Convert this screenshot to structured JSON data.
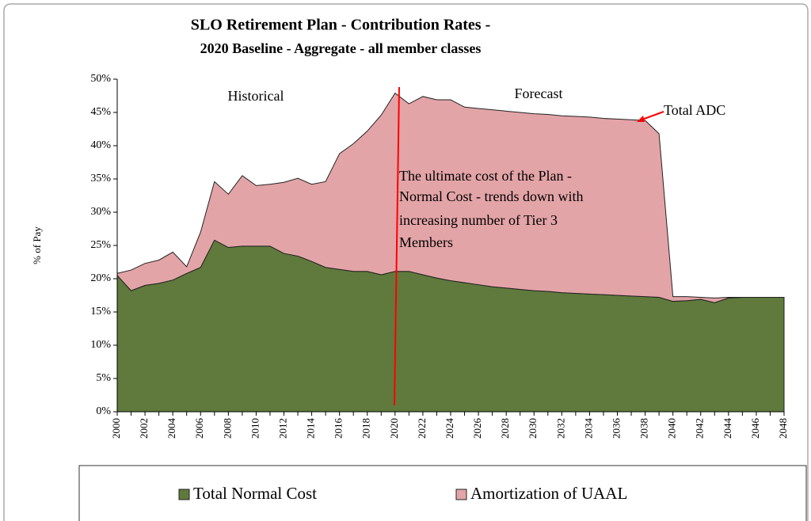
{
  "chart_data": {
    "type": "stacked_area",
    "title": [
      "SLO Retirement Plan - Contribution Rates -",
      "2020 Baseline - Aggregate - all member classes"
    ],
    "y_label": "% of Pay",
    "annotations": {
      "historical": "Historical",
      "forecast": "Forecast",
      "total_adc": "Total ADC",
      "note": [
        "The ultimate cost of the Plan -",
        "Normal Cost - trends down with",
        "increasing number of Tier 3",
        "Members"
      ]
    },
    "categories": [
      "2000",
      null,
      "2002",
      null,
      "2004",
      null,
      "2006",
      null,
      "2008",
      null,
      "2010",
      null,
      "2012",
      null,
      "2014",
      null,
      "2016",
      null,
      "2018",
      null,
      "2020",
      null,
      "2022",
      null,
      "2024",
      null,
      "2026",
      null,
      "2028",
      null,
      "2030",
      null,
      "2032",
      null,
      "2034",
      null,
      "2036",
      null,
      "2038",
      null,
      "2040",
      null,
      "2042",
      null,
      "2044",
      null,
      "2046",
      null,
      "2048"
    ],
    "series": [
      {
        "name": "Total Normal Cost",
        "color": "#5f7a3c",
        "values": [
          20.5,
          18.2,
          19.0,
          19.3,
          19.8,
          20.8,
          21.7,
          25.8,
          24.7,
          24.9,
          24.9,
          24.9,
          23.8,
          23.4,
          22.6,
          21.7,
          21.4,
          21.1,
          21.1,
          20.6,
          21.1,
          21.1,
          20.6,
          20.1,
          19.7,
          19.4,
          19.1,
          18.8,
          18.6,
          18.4,
          18.2,
          18.1,
          17.9,
          17.8,
          17.7,
          17.6,
          17.5,
          17.4,
          17.3,
          17.2,
          16.6,
          16.7,
          16.9,
          16.4,
          17.1,
          17.2,
          17.2,
          17.2,
          17.2
        ]
      },
      {
        "name": "Amortization of UAAL",
        "color": "#e3a4a7",
        "values": [
          0.3,
          3.1,
          3.3,
          3.5,
          4.2,
          1.0,
          5.3,
          8.8,
          8.0,
          10.6,
          9.1,
          9.3,
          10.7,
          11.7,
          11.6,
          12.9,
          17.4,
          19.2,
          21.1,
          24.0,
          26.8,
          25.2,
          26.8,
          26.8,
          27.2,
          26.4,
          26.5,
          26.6,
          26.6,
          26.6,
          26.6,
          26.6,
          26.6,
          26.6,
          26.6,
          26.5,
          26.5,
          26.5,
          26.5,
          24.6,
          0.7,
          0.6,
          0.3,
          0.7,
          0.1,
          0,
          0,
          0,
          0
        ]
      }
    ],
    "ylim": [
      0,
      50
    ],
    "yticks": [
      {
        "value": 0,
        "label": "0%"
      },
      {
        "value": 5,
        "label": "5%"
      },
      {
        "value": 10,
        "label": "10%"
      },
      {
        "value": 15,
        "label": "15%"
      },
      {
        "value": 20,
        "label": "20%"
      },
      {
        "value": 25,
        "label": "25%"
      },
      {
        "value": 30,
        "label": "30%"
      },
      {
        "value": 35,
        "label": "35%"
      },
      {
        "value": 40,
        "label": "40%"
      },
      {
        "value": 45,
        "label": "45%"
      },
      {
        "value": 50,
        "label": "50%"
      }
    ],
    "legend": "bottom"
  }
}
